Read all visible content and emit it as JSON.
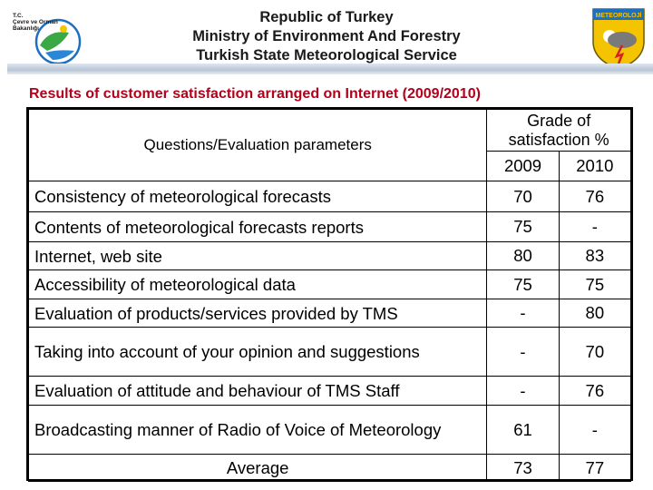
{
  "header": {
    "left_logo_text": "T.C.\nÇevre ve Orman\nBakanlığı",
    "title_lines": [
      "Republic of Turkey",
      "Ministry of Environment And Forestry",
      "Turkish State Meteorological Service"
    ],
    "right_logo_text": "METEOROLOJİ"
  },
  "page_heading": "Results of customer satisfaction arranged on Internet (2009/2010)",
  "table": {
    "param_header": "Questions/Evaluation parameters",
    "grade_header": "Grade of satisfaction %",
    "year_headers": [
      "2009",
      "2010"
    ],
    "rows": [
      {
        "question": "Consistency of meteorological forecasts",
        "y2009": "70",
        "y2010": "76"
      },
      {
        "question": "Contents of meteorological forecasts reports",
        "y2009": "75",
        "y2010": "-"
      },
      {
        "question": "Internet, web site",
        "y2009": "80",
        "y2010": "83"
      },
      {
        "question": "Accessibility of meteorological data",
        "y2009": "75",
        "y2010": "75"
      },
      {
        "question": "Evaluation of products/services provided by TMS",
        "y2009": "-",
        "y2010": "80"
      },
      {
        "question": "Taking into account of your opinion and suggestions",
        "y2009": "-",
        "y2010": "70"
      },
      {
        "question": "Evaluation of attitude and behaviour of TMS Staff",
        "y2009": "-",
        "y2010": "76"
      },
      {
        "question": "Broadcasting manner of Radio of Voice of Meteorology",
        "y2009": "61",
        "y2010": "-"
      }
    ],
    "average": {
      "label": "Average",
      "y2009": "73",
      "y2010": "77"
    }
  },
  "colors": {
    "heading_red": "#b3001b",
    "logo_yellow": "#f5c400",
    "logo_blue": "#1d6fc2"
  }
}
